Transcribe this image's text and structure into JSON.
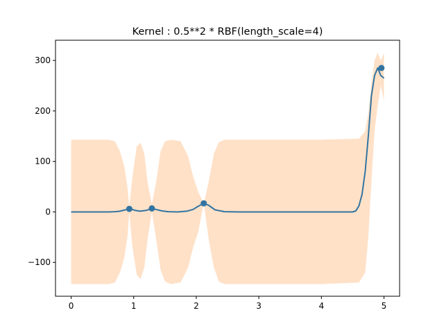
{
  "chart_data": {
    "type": "line",
    "title": "Kernel : 0.5**2 * RBF(length_scale=4)",
    "xlabel": "",
    "ylabel": "",
    "xlim": [
      -0.25,
      5.25
    ],
    "ylim": [
      -167,
      340
    ],
    "x_ticks": [
      0,
      1,
      2,
      3,
      4,
      5
    ],
    "y_ticks": [
      -100,
      0,
      100,
      200,
      300
    ],
    "x_tick_labels": [
      "0",
      "1",
      "2",
      "3",
      "4",
      "5"
    ],
    "y_tick_labels": [
      "−100",
      "0",
      "100",
      "200",
      "300"
    ],
    "grid": false,
    "legend": "none",
    "colors": {
      "mean_line": "#3274a1",
      "observations": "#3274a1",
      "confidence_band": "#ffe1c8"
    },
    "series": [
      {
        "kind": "mean",
        "x": [
          0,
          0.2,
          0.4,
          0.6,
          0.7,
          0.75,
          0.8,
          0.85,
          0.9,
          0.93,
          0.97,
          1.02,
          1.1,
          1.2,
          1.29,
          1.35,
          1.45,
          1.55,
          1.7,
          1.85,
          1.95,
          2.03,
          2.12,
          2.2,
          2.3,
          2.45,
          2.7,
          3.0,
          3.5,
          4.0,
          4.5,
          4.55,
          4.6,
          4.65,
          4.7,
          4.75,
          4.8,
          4.85,
          4.9,
          4.95,
          5.0
        ],
        "values": [
          0,
          0,
          0,
          0,
          0.5,
          1,
          2,
          3.5,
          5,
          6,
          5.5,
          3,
          1.5,
          3,
          7,
          5,
          2,
          0.5,
          0,
          1.5,
          5,
          11,
          17,
          13,
          4,
          0.5,
          0,
          0,
          0,
          0,
          0,
          2,
          12,
          35,
          80,
          150,
          230,
          270,
          285,
          270,
          265
        ]
      },
      {
        "kind": "confidence-upper",
        "x": [
          0,
          0.6,
          0.7,
          0.78,
          0.85,
          0.9,
          0.93,
          0.98,
          1.05,
          1.11,
          1.17,
          1.22,
          1.29,
          1.36,
          1.43,
          1.5,
          1.6,
          1.75,
          1.87,
          1.95,
          2.03,
          2.12,
          2.2,
          2.28,
          2.36,
          2.45,
          2.6,
          3.0,
          4.0,
          4.6,
          4.7,
          4.75,
          4.8,
          4.85,
          4.9,
          4.95,
          5.0
        ],
        "values": [
          143,
          143,
          140,
          120,
          90,
          50,
          10,
          70,
          130,
          137,
          115,
          60,
          15,
          60,
          120,
          140,
          143,
          140,
          110,
          70,
          40,
          17,
          60,
          115,
          138,
          143,
          143,
          143,
          143,
          145,
          160,
          195,
          255,
          300,
          315,
          300,
          315
        ]
      },
      {
        "kind": "confidence-lower",
        "x": [
          0,
          0.6,
          0.7,
          0.78,
          0.85,
          0.9,
          0.93,
          0.98,
          1.05,
          1.11,
          1.17,
          1.22,
          1.29,
          1.36,
          1.43,
          1.5,
          1.6,
          1.75,
          1.87,
          1.95,
          2.03,
          2.12,
          2.2,
          2.28,
          2.36,
          2.45,
          2.6,
          3.0,
          4.0,
          4.6,
          4.7,
          4.75,
          4.8,
          4.85,
          4.9,
          4.95,
          5.0
        ],
        "values": [
          -143,
          -143,
          -140,
          -120,
          -90,
          -50,
          0,
          -70,
          -125,
          -133,
          -110,
          -55,
          0,
          -55,
          -115,
          -138,
          -143,
          -140,
          -110,
          -70,
          -40,
          17,
          -55,
          -110,
          -138,
          -143,
          -143,
          -143,
          -143,
          -140,
          -120,
          -50,
          60,
          160,
          210,
          250,
          220
        ]
      },
      {
        "kind": "observations",
        "x": [
          0.93,
          1.29,
          2.12,
          4.96
        ],
        "values": [
          6,
          7,
          17,
          285
        ]
      }
    ]
  }
}
